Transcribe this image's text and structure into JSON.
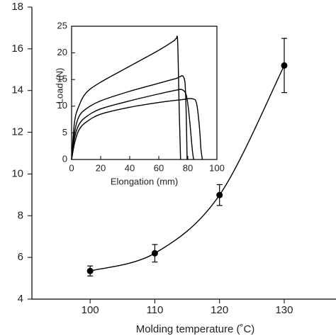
{
  "chart_data": [
    {
      "type": "line",
      "xlabel": "Molding temperature (˚C)",
      "x": [
        100,
        110,
        120,
        130
      ],
      "series": [
        {
          "color": "#000000",
          "values": [
            5.35,
            6.2,
            8.99,
            15.2
          ],
          "errors": [
            0.24,
            0.42,
            0.5,
            1.3
          ]
        }
      ],
      "xlim": [
        91,
        138
      ],
      "ylim": [
        4,
        18
      ],
      "xticks": [
        100,
        110,
        120,
        130
      ],
      "yticks": [
        4,
        6,
        8,
        10,
        12,
        14,
        16,
        18
      ],
      "markers": true
    },
    {
      "type": "line",
      "xlabel": "Elongation (mm)",
      "ylabel": "Load (N)",
      "series": [
        {
          "color": "#000000",
          "x": [
            0,
            2,
            5,
            10,
            20,
            40,
            60,
            70,
            72,
            73,
            74,
            75
          ],
          "values": [
            0,
            7,
            10,
            12.5,
            14.5,
            17.5,
            20.5,
            22.2,
            22.7,
            22,
            10,
            0
          ]
        },
        {
          "color": "#000000",
          "x": [
            0,
            2,
            5,
            10,
            20,
            40,
            60,
            72,
            77,
            78.5,
            79.5
          ],
          "values": [
            0,
            5,
            8,
            9.5,
            11,
            12.8,
            14.3,
            15.2,
            15.5,
            12,
            0
          ]
        },
        {
          "color": "#000000",
          "x": [
            0,
            2,
            5,
            10,
            20,
            40,
            60,
            72,
            76,
            79,
            81,
            83,
            84
          ],
          "values": [
            0,
            4,
            6.5,
            8,
            9.5,
            11,
            12.3,
            13,
            13.1,
            12,
            8,
            2,
            0
          ]
        },
        {
          "color": "#000000",
          "x": [
            0,
            2,
            5,
            10,
            20,
            40,
            60,
            75,
            83,
            86,
            88,
            89,
            90
          ],
          "values": [
            0,
            3,
            5.5,
            7,
            8.5,
            9.8,
            10.7,
            11.2,
            11.4,
            10.5,
            6,
            2,
            0
          ]
        }
      ],
      "xlim": [
        0,
        100
      ],
      "ylim": [
        0,
        25
      ],
      "xticks": [
        0,
        20,
        40,
        60,
        80,
        100
      ],
      "yticks": [
        0,
        5,
        10,
        15,
        20,
        25
      ],
      "markers": false
    }
  ]
}
